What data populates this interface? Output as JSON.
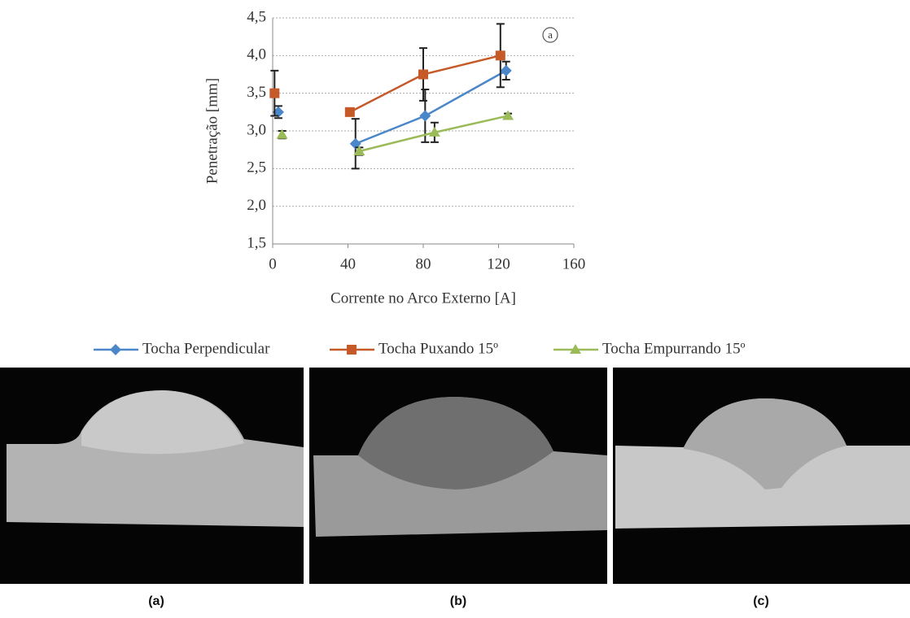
{
  "chart_data": {
    "type": "line",
    "xlabel": "Corrente no Arco Externo [A]",
    "ylabel": "Penetração [mm]",
    "annotation": "a",
    "xlim": [
      0,
      160
    ],
    "xticks": [
      0,
      40,
      80,
      120,
      160
    ],
    "ylim": [
      1.5,
      4.5
    ],
    "yticks": [
      {
        "value": 1.5,
        "label": "1,5"
      },
      {
        "value": 2.0,
        "label": "2,0"
      },
      {
        "value": 2.5,
        "label": "2,5"
      },
      {
        "value": 3.0,
        "label": "3,0"
      },
      {
        "value": 3.5,
        "label": "3,5"
      },
      {
        "value": 4.0,
        "label": "4,0"
      },
      {
        "value": 4.5,
        "label": "4,5"
      }
    ],
    "grid": true,
    "series": [
      {
        "name": "Tocha Perpendicular",
        "color": "#4a86c8",
        "marker": "diamond",
        "x": [
          3,
          null,
          44,
          81,
          124
        ],
        "values": [
          3.25,
          null,
          2.83,
          3.2,
          3.8
        ],
        "errors": [
          0.08,
          null,
          0.33,
          0.35,
          0.12
        ]
      },
      {
        "name": "Tocha Puxando 15º",
        "color": "#c55a28",
        "marker": "square",
        "x": [
          1,
          null,
          41,
          80,
          121
        ],
        "values": [
          3.5,
          null,
          3.25,
          3.75,
          4.0
        ],
        "errors": [
          0.3,
          null,
          0.05,
          0.35,
          0.42
        ]
      },
      {
        "name": "Tocha Empurrando 15º",
        "color": "#9bbb59",
        "marker": "triangle",
        "x": [
          5,
          null,
          46,
          86,
          125
        ],
        "values": [
          2.95,
          null,
          2.73,
          2.98,
          3.2
        ],
        "errors": [
          0.05,
          null,
          0.05,
          0.13,
          0.03
        ]
      }
    ]
  },
  "figure": {
    "captions": [
      "(a)",
      "(b)",
      "(c)"
    ]
  }
}
